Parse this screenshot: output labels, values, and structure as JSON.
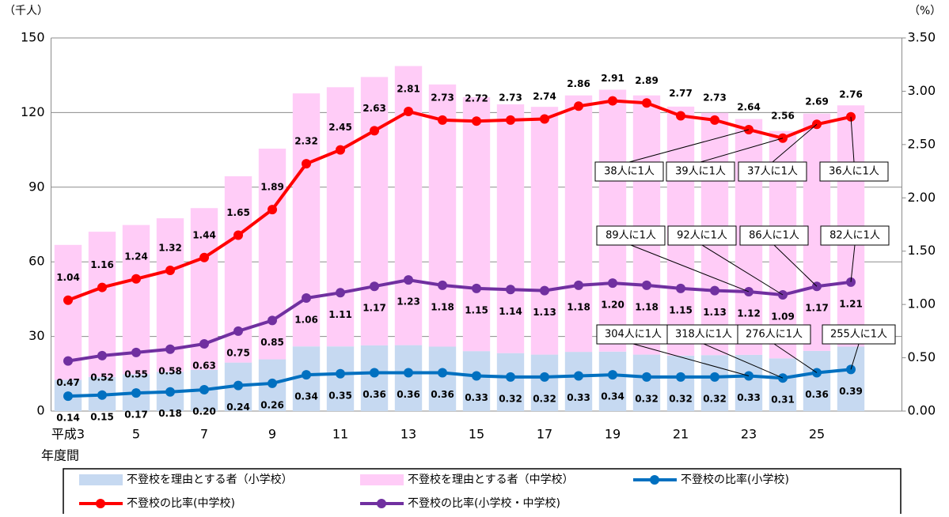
{
  "chart_data": {
    "type": "bar",
    "stacked": true,
    "y_label": "（千人）",
    "y2_label": "（%）",
    "x_label": "年度間",
    "categories": [
      "平成3",
      null,
      "5",
      null,
      "7",
      null,
      "9",
      null,
      "11",
      null,
      "13",
      null,
      "15",
      null,
      "17",
      null,
      "19",
      null,
      "21",
      null,
      "23",
      null,
      "25",
      null
    ],
    "series": [
      {
        "name": "不登校を理由とする者（小学校）",
        "type": "bar",
        "color": "#c6d9f1",
        "values": [
          12.6,
          13.7,
          14.8,
          15.8,
          16.6,
          19.5,
          20.8,
          26.0,
          26.0,
          26.4,
          26.5,
          25.9,
          24.1,
          23.3,
          22.7,
          23.8,
          23.9,
          22.7,
          22.3,
          22.5,
          22.6,
          21.2,
          24.2,
          25.9
        ]
      },
      {
        "name": "不登校を理由とする者（中学校）",
        "type": "bar",
        "color": "#ffccf7",
        "values": [
          54.2,
          58.4,
          60.0,
          61.7,
          65.0,
          74.9,
          84.7,
          101.7,
          104.2,
          107.9,
          112.2,
          105.4,
          102.1,
          100.0,
          99.6,
          103.1,
          105.3,
          104.2,
          100.1,
          97.4,
          94.8,
          91.4,
          95.4,
          97.0
        ]
      },
      {
        "name": "不登校の比率(小学校)",
        "type": "line",
        "axis": "y2",
        "color": "#0070c0",
        "label_pos": "below",
        "values": [
          0.14,
          0.15,
          0.17,
          0.18,
          0.2,
          0.24,
          0.26,
          0.34,
          0.35,
          0.36,
          0.36,
          0.36,
          0.33,
          0.32,
          0.32,
          0.33,
          0.34,
          0.32,
          0.32,
          0.32,
          0.33,
          0.31,
          0.36,
          0.39
        ],
        "value_labels": [
          "0.14",
          "0.15",
          "0.17",
          "0.18",
          "0.20",
          "0.24",
          "0.26",
          "0.34",
          "0.35",
          "0.36",
          "0.36",
          "0.36",
          "0.33",
          "0.32",
          "0.32",
          "0.33",
          "0.34",
          "0.32",
          "0.32",
          "0.32",
          "0.33",
          "0.31",
          "0.36",
          "0.39"
        ]
      },
      {
        "name": "不登校の比率(中学校)",
        "type": "line",
        "axis": "y2",
        "color": "#ff0000",
        "label_pos": "above",
        "values": [
          1.04,
          1.16,
          1.24,
          1.32,
          1.44,
          1.65,
          1.89,
          2.32,
          2.45,
          2.63,
          2.81,
          2.73,
          2.72,
          2.73,
          2.74,
          2.86,
          2.91,
          2.89,
          2.77,
          2.73,
          2.64,
          2.56,
          2.69,
          2.76
        ],
        "value_labels": [
          "1.04",
          "1.16",
          "1.24",
          "1.32",
          "1.44",
          "1.65",
          "1.89",
          "2.32",
          "2.45",
          "2.63",
          "2.81",
          "2.73",
          "2.72",
          "2.73",
          "2.74",
          "2.86",
          "2.91",
          "2.89",
          "2.77",
          "2.73",
          "2.64",
          "2.56",
          "2.69",
          "2.76"
        ]
      },
      {
        "name": "不登校の比率(小学校・中学校)",
        "type": "line",
        "axis": "y2",
        "color": "#7030a0",
        "label_pos": "below",
        "values": [
          0.47,
          0.52,
          0.55,
          0.58,
          0.63,
          0.75,
          0.85,
          1.06,
          1.11,
          1.17,
          1.23,
          1.18,
          1.15,
          1.14,
          1.13,
          1.18,
          1.2,
          1.18,
          1.15,
          1.13,
          1.12,
          1.09,
          1.17,
          1.21
        ],
        "value_labels": [
          "0.47",
          "0.52",
          "0.55",
          "0.58",
          "0.63",
          "0.75",
          "0.85",
          "1.06",
          "1.11",
          "1.17",
          "1.23",
          "1.18",
          "1.15",
          "1.14",
          "1.13",
          "1.18",
          "1.20",
          "1.18",
          "1.15",
          "1.13",
          "1.12",
          "1.09",
          "1.17",
          "1.21"
        ]
      }
    ],
    "ylim": [
      0,
      150
    ],
    "yticks": [
      0,
      30,
      60,
      90,
      120,
      150
    ],
    "y2lim": [
      0,
      3.5
    ],
    "y2ticks": [
      {
        "value": 0,
        "label": "0.00"
      },
      {
        "value": 0.5,
        "label": "0.50"
      },
      {
        "value": 1,
        "label": "1.00"
      },
      {
        "value": 1.5,
        "label": "1.50"
      },
      {
        "value": 2,
        "label": "2.00"
      },
      {
        "value": 2.5,
        "label": "2.50"
      },
      {
        "value": 3,
        "label": "3.00"
      },
      {
        "value": 3.5,
        "label": "3.50"
      }
    ],
    "grid": true,
    "legend": "bottom",
    "annotations": [
      "38人に1人",
      "39人に1人",
      "37人に1人",
      "36人に1人",
      "89人に1人",
      "92人に1人",
      "86人に1人",
      "82人に1人",
      "304人に1人",
      "318人に1人",
      "276人に1人",
      "255人に1人"
    ]
  }
}
